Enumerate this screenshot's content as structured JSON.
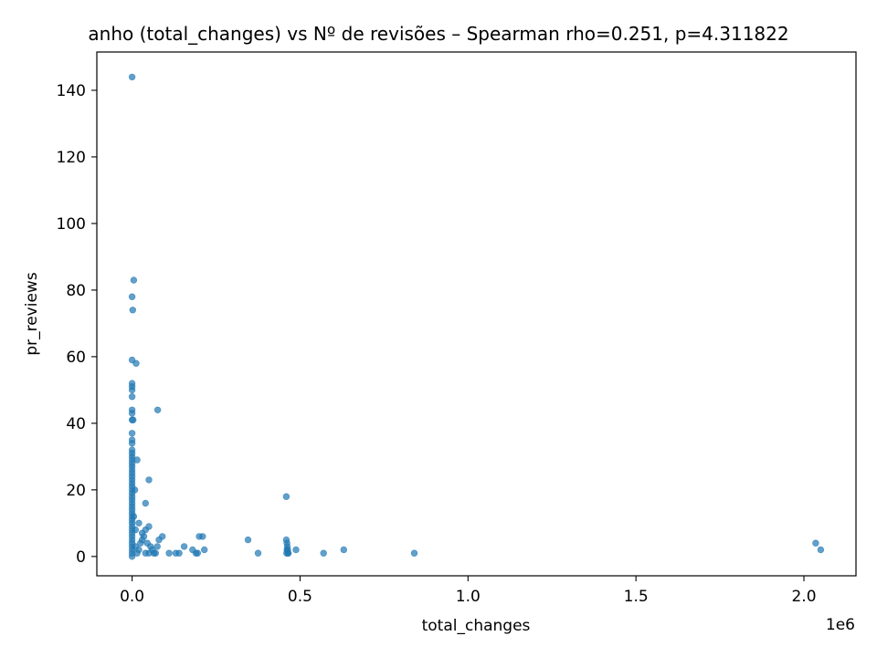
{
  "chart_data": {
    "type": "scatter",
    "title": "anho (total_changes) vs Nº de revisões – Spearman rho=0.251, p=4.311822",
    "xlabel": "total_changes",
    "ylabel": "pr_reviews",
    "x_offset_label": "1e6",
    "xlim": [
      -105000,
      2155000
    ],
    "ylim": [
      -5.8,
      151.5
    ],
    "x_ticks": [
      0.0,
      0.5,
      1.0,
      1.5,
      2.0
    ],
    "x_tick_labels": [
      "0.0",
      "0.5",
      "1.0",
      "1.5",
      "2.0"
    ],
    "x_tick_scale": 1000000,
    "y_ticks": [
      0,
      20,
      40,
      60,
      80,
      100,
      120,
      140
    ],
    "y_tick_labels": [
      "0",
      "20",
      "40",
      "60",
      "80",
      "100",
      "120",
      "140"
    ],
    "point_color": "#1f77b4",
    "point_alpha": 0.7,
    "grid": false,
    "legend": "none",
    "series": [
      {
        "points": [
          [
            0,
            144
          ],
          [
            5000,
            83
          ],
          [
            0,
            78
          ],
          [
            2000,
            74
          ],
          [
            0,
            59
          ],
          [
            12000,
            58
          ],
          [
            0,
            52
          ],
          [
            0,
            51
          ],
          [
            0,
            50
          ],
          [
            0,
            48
          ],
          [
            0,
            44
          ],
          [
            0,
            43
          ],
          [
            76000,
            44
          ],
          [
            0,
            41
          ],
          [
            3000,
            41
          ],
          [
            0,
            37
          ],
          [
            0,
            35
          ],
          [
            0,
            34
          ],
          [
            0,
            32
          ],
          [
            0,
            31
          ],
          [
            0,
            30
          ],
          [
            0,
            29
          ],
          [
            15000,
            29
          ],
          [
            0,
            28
          ],
          [
            0,
            27
          ],
          [
            0,
            26
          ],
          [
            0,
            25
          ],
          [
            0,
            24
          ],
          [
            0,
            23
          ],
          [
            50000,
            23
          ],
          [
            0,
            22
          ],
          [
            0,
            21
          ],
          [
            0,
            20
          ],
          [
            8000,
            20
          ],
          [
            0,
            19
          ],
          [
            0,
            18
          ],
          [
            0,
            17
          ],
          [
            0,
            16
          ],
          [
            40000,
            16
          ],
          [
            0,
            15
          ],
          [
            0,
            14
          ],
          [
            0,
            13
          ],
          [
            0,
            12
          ],
          [
            5000,
            12
          ],
          [
            0,
            11
          ],
          [
            0,
            10
          ],
          [
            20000,
            10
          ],
          [
            0,
            9
          ],
          [
            0,
            8
          ],
          [
            10000,
            8
          ],
          [
            0,
            7
          ],
          [
            0,
            6
          ],
          [
            0,
            5
          ],
          [
            0,
            4
          ],
          [
            0,
            3
          ],
          [
            0,
            2
          ],
          [
            0,
            1
          ],
          [
            0,
            0
          ],
          [
            30000,
            7
          ],
          [
            35000,
            6
          ],
          [
            50000,
            9
          ],
          [
            40000,
            8
          ],
          [
            25000,
            4
          ],
          [
            30000,
            5
          ],
          [
            45000,
            4
          ],
          [
            55000,
            3
          ],
          [
            60000,
            2
          ],
          [
            70000,
            1
          ],
          [
            80000,
            5
          ],
          [
            90000,
            6
          ],
          [
            75000,
            3
          ],
          [
            65000,
            1
          ],
          [
            20000,
            2
          ],
          [
            15000,
            1
          ],
          [
            10000,
            3
          ],
          [
            40000,
            1
          ],
          [
            50000,
            1
          ],
          [
            110000,
            1
          ],
          [
            130000,
            1
          ],
          [
            140000,
            1
          ],
          [
            155000,
            3
          ],
          [
            180000,
            2
          ],
          [
            190000,
            1
          ],
          [
            200000,
            6
          ],
          [
            210000,
            6
          ],
          [
            195000,
            1
          ],
          [
            215000,
            2
          ],
          [
            345000,
            5
          ],
          [
            375000,
            1
          ],
          [
            459000,
            18
          ],
          [
            459000,
            5
          ],
          [
            461000,
            4
          ],
          [
            462000,
            3
          ],
          [
            463000,
            2
          ],
          [
            464000,
            1
          ],
          [
            460000,
            1
          ],
          [
            461000,
            2
          ],
          [
            465000,
            1
          ],
          [
            488000,
            2
          ],
          [
            570000,
            1
          ],
          [
            630000,
            2
          ],
          [
            840000,
            1
          ],
          [
            2035000,
            4
          ],
          [
            2050000,
            2
          ]
        ]
      }
    ]
  }
}
